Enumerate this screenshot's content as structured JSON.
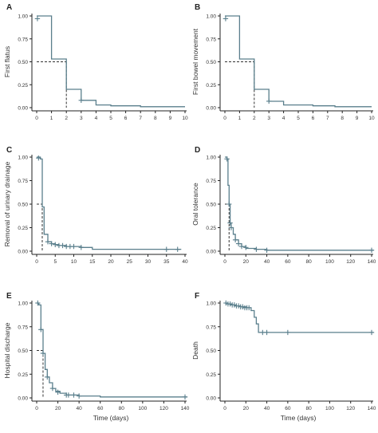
{
  "figure": {
    "line_color": "#5a7f8c",
    "median_color": "#333333",
    "axis_color": "#222222"
  },
  "chart_data": [
    {
      "type": "line",
      "panel_label": "A",
      "xlabel": "",
      "ylabel": "First flatus",
      "xlim": [
        0,
        10
      ],
      "ylim": [
        0,
        1
      ],
      "xticks": [
        "0",
        "1",
        "2",
        "3",
        "4",
        "5",
        "6",
        "7",
        "8",
        "9",
        "10"
      ],
      "yticks": [
        "0.00",
        "0.25",
        "0.50",
        "0.75",
        "1.00"
      ],
      "series": [
        {
          "steps": [
            [
              0,
              1.0
            ],
            [
              1,
              0.53
            ],
            [
              2,
              0.2
            ],
            [
              3,
              0.08
            ],
            [
              4,
              0.03
            ],
            [
              5,
              0.02
            ],
            [
              7,
              0.01
            ],
            [
              10,
              0.01
            ]
          ]
        }
      ],
      "censored": [
        [
          0.05,
          0.97
        ],
        [
          3.0,
          0.08
        ]
      ],
      "median": 2
    },
    {
      "type": "line",
      "panel_label": "B",
      "xlabel": "",
      "ylabel": "First bowel movement",
      "xlim": [
        0,
        10
      ],
      "ylim": [
        0,
        1
      ],
      "xticks": [
        "0",
        "1",
        "2",
        "3",
        "4",
        "5",
        "6",
        "7",
        "8",
        "9",
        "10"
      ],
      "yticks": [
        "0.00",
        "0.25",
        "0.50",
        "0.75",
        "1.00"
      ],
      "series": [
        {
          "steps": [
            [
              0,
              1.0
            ],
            [
              1,
              0.53
            ],
            [
              2,
              0.2
            ],
            [
              3,
              0.07
            ],
            [
              4,
              0.03
            ],
            [
              6,
              0.02
            ],
            [
              7.5,
              0.01
            ],
            [
              10,
              0.01
            ]
          ]
        }
      ],
      "censored": [
        [
          0.05,
          0.97
        ],
        [
          3.0,
          0.07
        ]
      ],
      "median": 2
    },
    {
      "type": "line",
      "panel_label": "C",
      "xlabel": "",
      "ylabel": "Removal of urinary drainage",
      "xlim": [
        0,
        40
      ],
      "ylim": [
        0,
        1
      ],
      "xticks": [
        "0",
        "5",
        "10",
        "15",
        "20",
        "25",
        "30",
        "35",
        "40"
      ],
      "yticks": [
        "0.00",
        "0.25",
        "0.50",
        "0.75",
        "1.00"
      ],
      "series": [
        {
          "steps": [
            [
              0,
              1.0
            ],
            [
              1,
              0.98
            ],
            [
              1.5,
              0.47
            ],
            [
              2,
              0.18
            ],
            [
              3,
              0.1
            ],
            [
              4,
              0.08
            ],
            [
              5,
              0.07
            ],
            [
              6,
              0.06
            ],
            [
              8,
              0.05
            ],
            [
              12,
              0.04
            ],
            [
              15,
              0.02
            ],
            [
              39,
              0.02
            ]
          ]
        }
      ],
      "censored": [
        [
          0.5,
          0.99
        ],
        [
          3,
          0.1
        ],
        [
          4,
          0.08
        ],
        [
          5,
          0.07
        ],
        [
          6,
          0.06
        ],
        [
          7,
          0.06
        ],
        [
          8,
          0.05
        ],
        [
          9,
          0.05
        ],
        [
          10,
          0.05
        ],
        [
          12,
          0.04
        ],
        [
          35,
          0.02
        ],
        [
          38,
          0.02
        ]
      ],
      "median": 1.5
    },
    {
      "type": "line",
      "panel_label": "D",
      "xlabel": "",
      "ylabel": "Oral tolerance",
      "xlim": [
        0,
        140
      ],
      "ylim": [
        0,
        1
      ],
      "xticks": [
        "0",
        "20",
        "40",
        "60",
        "80",
        "100",
        "120",
        "140"
      ],
      "yticks": [
        "0.00",
        "0.25",
        "0.50",
        "0.75",
        "1.00"
      ],
      "series": [
        {
          "steps": [
            [
              0,
              1.0
            ],
            [
              2,
              0.98
            ],
            [
              3,
              0.7
            ],
            [
              4,
              0.5
            ],
            [
              5,
              0.3
            ],
            [
              6,
              0.25
            ],
            [
              8,
              0.18
            ],
            [
              10,
              0.12
            ],
            [
              13,
              0.08
            ],
            [
              16,
              0.05
            ],
            [
              20,
              0.03
            ],
            [
              30,
              0.02
            ],
            [
              40,
              0.01
            ],
            [
              142,
              0.01
            ]
          ]
        }
      ],
      "censored": [
        [
          2,
          0.98
        ],
        [
          4,
          0.5
        ],
        [
          5,
          0.3
        ],
        [
          6,
          0.25
        ],
        [
          10,
          0.12
        ],
        [
          13,
          0.08
        ],
        [
          16,
          0.05
        ],
        [
          20,
          0.04
        ],
        [
          30,
          0.02
        ],
        [
          40,
          0.01
        ],
        [
          140,
          0.01
        ]
      ],
      "median": 4
    },
    {
      "type": "line",
      "panel_label": "E",
      "xlabel": "Time (days)",
      "ylabel": "Hospital discharge",
      "xlim": [
        0,
        140
      ],
      "ylim": [
        0,
        1
      ],
      "xticks": [
        "0",
        "20",
        "40",
        "60",
        "80",
        "100",
        "120",
        "140"
      ],
      "yticks": [
        "0.00",
        "0.25",
        "0.50",
        "0.75",
        "1.00"
      ],
      "series": [
        {
          "steps": [
            [
              0,
              1.0
            ],
            [
              2,
              0.98
            ],
            [
              4,
              0.72
            ],
            [
              6,
              0.47
            ],
            [
              8,
              0.3
            ],
            [
              10,
              0.22
            ],
            [
              12,
              0.16
            ],
            [
              15,
              0.1
            ],
            [
              18,
              0.07
            ],
            [
              22,
              0.05
            ],
            [
              28,
              0.03
            ],
            [
              40,
              0.02
            ],
            [
              60,
              0.01
            ],
            [
              142,
              0.01
            ]
          ]
        }
      ],
      "censored": [
        [
          1,
          1.0
        ],
        [
          4,
          0.72
        ],
        [
          6,
          0.47
        ],
        [
          10,
          0.22
        ],
        [
          15,
          0.1
        ],
        [
          20,
          0.06
        ],
        [
          28,
          0.03
        ],
        [
          30,
          0.03
        ],
        [
          35,
          0.03
        ],
        [
          40,
          0.02
        ],
        [
          140,
          0.01
        ]
      ],
      "median": 6
    },
    {
      "type": "line",
      "panel_label": "F",
      "xlabel": "Time (days)",
      "ylabel": "Death",
      "xlim": [
        0,
        140
      ],
      "ylim": [
        0,
        1
      ],
      "xticks": [
        "0",
        "20",
        "40",
        "60",
        "80",
        "100",
        "120",
        "140"
      ],
      "yticks": [
        "0.00",
        "0.25",
        "0.50",
        "0.75",
        "1.00"
      ],
      "series": [
        {
          "steps": [
            [
              0,
              1.0
            ],
            [
              3,
              0.99
            ],
            [
              6,
              0.98
            ],
            [
              10,
              0.97
            ],
            [
              15,
              0.96
            ],
            [
              20,
              0.95
            ],
            [
              25,
              0.92
            ],
            [
              28,
              0.85
            ],
            [
              30,
              0.78
            ],
            [
              32,
              0.69
            ],
            [
              142,
              0.69
            ]
          ]
        }
      ],
      "censored": [
        [
          1,
          1.0
        ],
        [
          3,
          0.99
        ],
        [
          5,
          0.99
        ],
        [
          7,
          0.98
        ],
        [
          9,
          0.98
        ],
        [
          11,
          0.97
        ],
        [
          13,
          0.97
        ],
        [
          15,
          0.96
        ],
        [
          17,
          0.96
        ],
        [
          19,
          0.95
        ],
        [
          21,
          0.95
        ],
        [
          23,
          0.95
        ],
        [
          36,
          0.69
        ],
        [
          40,
          0.69
        ],
        [
          60,
          0.69
        ],
        [
          140,
          0.69
        ]
      ],
      "median": null
    }
  ]
}
